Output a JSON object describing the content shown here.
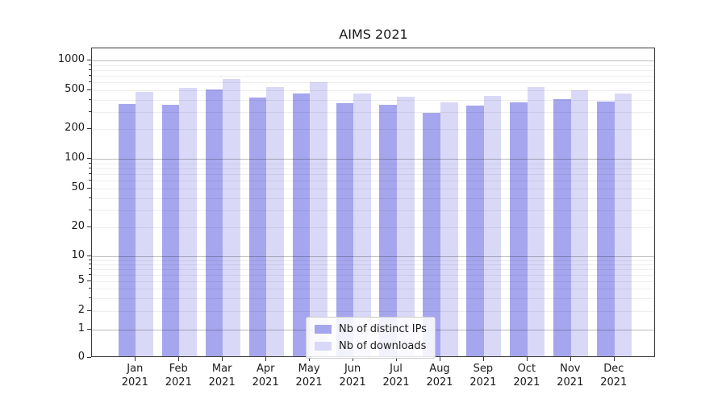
{
  "chart_data": {
    "type": "bar",
    "title": "AIMS 2021",
    "categories": [
      "Jan",
      "Feb",
      "Mar",
      "Apr",
      "May",
      "Jun",
      "Jul",
      "Aug",
      "Sep",
      "Oct",
      "Nov",
      "Dec"
    ],
    "category_year": "2021",
    "series": [
      {
        "name": "Nb of distinct IPs",
        "color": "#a6a6ee",
        "values": [
          350,
          344,
          490,
          406,
          445,
          356,
          341,
          282,
          336,
          359,
          387,
          370
        ]
      },
      {
        "name": "Nb of downloads",
        "color": "#d9d9f7",
        "values": [
          460,
          508,
          625,
          512,
          578,
          444,
          414,
          363,
          420,
          521,
          482,
          447
        ]
      }
    ],
    "yscale": "log-with-zero-baseline",
    "ylim": [
      0,
      1300
    ],
    "y_ticks": [
      0,
      1,
      2,
      5,
      10,
      20,
      50,
      100,
      200,
      500,
      1000
    ],
    "y_tick_labels": [
      "0",
      "1",
      "2",
      "5",
      "10",
      "20",
      "50",
      "100",
      "200",
      "500",
      "1000"
    ],
    "grid": "major-and-minor-horizontal",
    "legend_position": "inside-lower-center"
  }
}
